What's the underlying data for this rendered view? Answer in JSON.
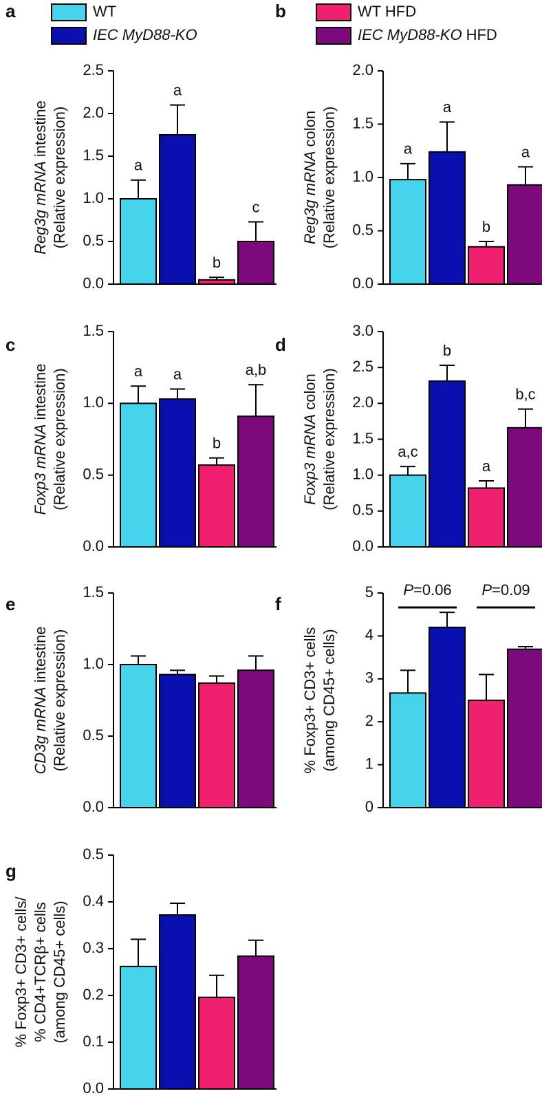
{
  "legend": [
    {
      "name": "WT",
      "color": "#45d4ec"
    },
    {
      "name": "IEC MyD88-KO",
      "italic": true,
      "color": "#0a10b0"
    },
    {
      "name": "WT HFD",
      "color": "#f0206e"
    },
    {
      "name": "IEC MyD88-KO",
      "italic": true,
      "qualifier": "HFD",
      "color": "#7c0a7c"
    }
  ],
  "chart_data": [
    {
      "type": "bar",
      "panel": "a",
      "ylabel_italic": "Reg3g mRNA",
      "ylabel": [
        "intestine",
        "(Relative expression)"
      ],
      "values": [
        1.0,
        1.75,
        0.05,
        0.5
      ],
      "errors": [
        0.22,
        0.35,
        0.03,
        0.23
      ],
      "letters": [
        "a",
        "a",
        "b",
        "c"
      ],
      "ylim": [
        0,
        2.5
      ],
      "yticks": [
        {
          "value": 0,
          "label": "0.0"
        },
        0.5,
        {
          "value": 1,
          "label": "1.0"
        },
        1.5,
        {
          "value": 2,
          "label": "2.0"
        },
        2.5
      ]
    },
    {
      "type": "bar",
      "panel": "b",
      "ylabel_italic": "Reg3g mRNA",
      "ylabel": [
        "colon",
        "(Relative expression)"
      ],
      "values": [
        0.98,
        1.24,
        0.35,
        0.93
      ],
      "errors": [
        0.15,
        0.28,
        0.05,
        0.17
      ],
      "letters": [
        "a",
        "a",
        "b",
        "a"
      ],
      "ylim": [
        0,
        2
      ],
      "yticks": [
        {
          "value": 0,
          "label": "0.0"
        },
        0.5,
        {
          "value": 1,
          "label": "1.0"
        },
        1.5,
        {
          "value": 2,
          "label": "2.0"
        }
      ]
    },
    {
      "type": "bar",
      "panel": "c",
      "ylabel_italic": "Foxp3 mRNA",
      "ylabel": [
        "intestine",
        "(Relative expression)"
      ],
      "values": [
        1.0,
        1.03,
        0.57,
        0.91
      ],
      "errors": [
        0.12,
        0.07,
        0.05,
        0.22
      ],
      "letters": [
        "a",
        "a",
        "b",
        "a,b"
      ],
      "ylim": [
        0,
        1.5
      ],
      "yticks": [
        {
          "value": 0,
          "label": "0.0"
        },
        0.5,
        {
          "value": 1,
          "label": "1.0"
        },
        1.5
      ]
    },
    {
      "type": "bar",
      "panel": "d",
      "ylabel_italic": "Foxp3 mRNA",
      "ylabel": [
        "colon",
        "(Relative expression)"
      ],
      "values": [
        1.0,
        2.31,
        0.82,
        1.66
      ],
      "errors": [
        0.12,
        0.22,
        0.1,
        0.26
      ],
      "letters": [
        "a,c",
        "b",
        "a",
        "b,c"
      ],
      "ylim": [
        0,
        3
      ],
      "yticks": [
        {
          "value": 0,
          "label": "0.0"
        },
        0.5,
        {
          "value": 1,
          "label": "1.0"
        },
        1.5,
        {
          "value": 2,
          "label": "2.0"
        },
        2.5,
        {
          "value": 3,
          "label": "3.0"
        }
      ]
    },
    {
      "type": "bar",
      "panel": "e",
      "ylabel_italic": "CD3g mRNA",
      "ylabel": [
        "intestine",
        "(Relative expression)"
      ],
      "values": [
        1.0,
        0.93,
        0.87,
        0.96
      ],
      "errors": [
        0.06,
        0.03,
        0.05,
        0.1
      ],
      "ylim": [
        0,
        1.5
      ],
      "yticks": [
        {
          "value": 0,
          "label": "0.0"
        },
        0.5,
        {
          "value": 1,
          "label": "1.0"
        },
        1.5
      ]
    },
    {
      "type": "bar",
      "panel": "f",
      "ylabel": [
        "% Foxp3+ CD3+ cells",
        "(among CD45+ cells)"
      ],
      "values": [
        2.67,
        4.2,
        2.5,
        3.69
      ],
      "errors": [
        0.53,
        0.35,
        0.6,
        0.06
      ],
      "annotations": [
        {
          "italic": "P",
          "text": "=0.06"
        },
        {
          "italic": "P",
          "text": "=0.09"
        }
      ],
      "ylim": [
        0,
        5
      ],
      "yticks": [
        0,
        1,
        2,
        3,
        4,
        5
      ]
    },
    {
      "type": "bar",
      "panel": "g",
      "ylabel": [
        "% Foxp3+ CD3+ cells/",
        "% CD4+TCRβ+ cells",
        "(among CD45+ cells)"
      ],
      "values": [
        0.262,
        0.372,
        0.196,
        0.284
      ],
      "errors": [
        0.058,
        0.025,
        0.047,
        0.034
      ],
      "ylim": [
        0,
        0.5
      ],
      "yticks": [
        {
          "value": 0,
          "label": "0.0"
        },
        0.1,
        0.2,
        0.3,
        0.4,
        0.5
      ]
    }
  ]
}
